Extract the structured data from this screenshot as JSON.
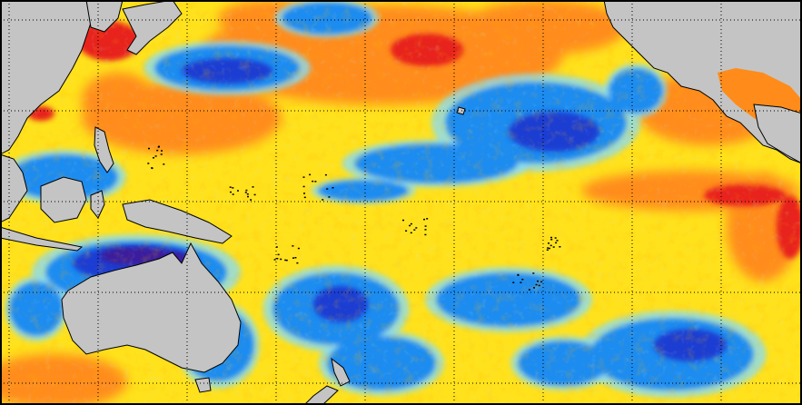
{
  "map": {
    "projection": "equirectangular",
    "region": "Pacific Ocean",
    "grid": true,
    "grid_style": "dotted",
    "colors": {
      "land": "#c4c4c4",
      "coastline": "#000000",
      "frame": "#000000",
      "grid": "#000000",
      "anomaly_very_warm": "#e8241c",
      "anomaly_warm": "#ff8c1a",
      "anomaly_mild_warm": "#ffc81e",
      "anomaly_neutral": "#ffe21c",
      "anomaly_slight_cool": "#8cdcf0",
      "anomaly_cool": "#1e8cf0",
      "anomaly_very_cool": "#1e3cd2",
      "anomaly_extreme_cool": "#3a1e9c"
    }
  }
}
